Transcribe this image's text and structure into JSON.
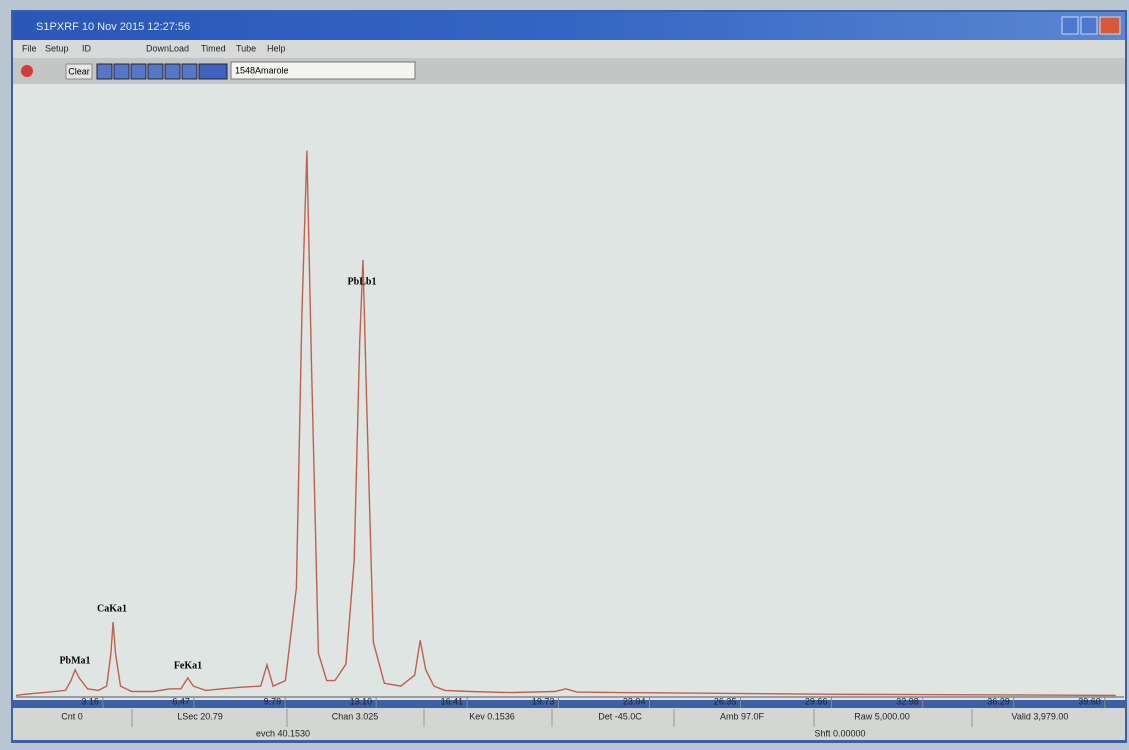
{
  "window": {
    "title": "S1PXRF   10 Nov 2015 12:27:56"
  },
  "menu": [
    "File",
    "Setup",
    "ID",
    "DownLoad",
    "Timed",
    "Tube",
    "Help"
  ],
  "toolbar": {
    "button": "Clear",
    "input": "1548Amarole"
  },
  "chart_data": {
    "type": "line",
    "x": [
      0.0,
      0.3,
      1.0,
      1.8,
      2.0,
      2.15,
      2.3,
      2.6,
      3.0,
      3.3,
      3.45,
      3.53,
      3.62,
      3.8,
      4.2,
      5.0,
      5.6,
      6.0,
      6.25,
      6.45,
      6.9,
      7.5,
      8.2,
      8.9,
      9.13,
      9.35,
      9.8,
      10.2,
      10.4,
      10.58,
      10.75,
      11.0,
      11.3,
      11.6,
      12.0,
      12.3,
      12.5,
      12.62,
      12.75,
      13.0,
      13.4,
      14.0,
      14.5,
      14.7,
      14.9,
      15.2,
      15.6,
      16.5,
      18.0,
      19.6,
      20.0,
      20.4,
      22.0,
      25.0,
      30.0,
      35.0,
      40.0
    ],
    "values": [
      0.3,
      0.5,
      0.8,
      1.2,
      3,
      5,
      3.5,
      1.5,
      1.2,
      2,
      8,
      13.7,
      8,
      2,
      1,
      1,
      1.5,
      1.5,
      3.5,
      2,
      1.2,
      1.5,
      1.8,
      2,
      5.9,
      2,
      3,
      20,
      70,
      100,
      60,
      8,
      3,
      3,
      6,
      25,
      65,
      80,
      55,
      10,
      2.5,
      2,
      4,
      10.4,
      5,
      2,
      1.2,
      1,
      0.8,
      1,
      1.5,
      0.9,
      0.8,
      0.7,
      0.5,
      0.4,
      0.3
    ],
    "color": "#c0604a",
    "xlim": [
      0,
      40.3
    ],
    "ylim": [
      0,
      112
    ],
    "xticks": [
      3.16,
      6.47,
      9.79,
      {
        "value": 13.1,
        "label": "13.10"
      },
      16.41,
      19.73,
      23.04,
      26.35,
      29.66,
      32.98,
      36.29,
      {
        "value": 39.6,
        "label": "39.60"
      }
    ],
    "annotations": [
      "PbMa1",
      "CaKa1",
      "FeKa1",
      "PbLb1"
    ]
  },
  "status": {
    "fields": [
      "Cnt 0",
      "LSec 20.79",
      "Chan 3.025",
      "Kev 0.1536",
      "Det -45.0C",
      "Amb 97.0F",
      "Raw 5,000.00",
      "Valid 3,979.00"
    ],
    "extra": [
      "evch 40.1530",
      "Shft 0.00000"
    ]
  }
}
